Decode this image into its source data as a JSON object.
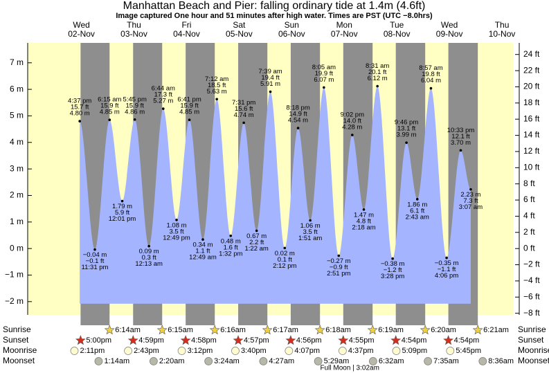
{
  "chart_data": {
    "type": "tide",
    "title": "Manhattan Beach and Pier: falling  ordinary tide at 1.4m (4.6ft)",
    "subtitle": "Image captured One hour and 51 minutes after high water. Times are PST (UTC −8.0hrs)",
    "ylim": [
      -2.5,
      7.75
    ],
    "yticks": [
      {
        "value": -2,
        "label": "−2 m"
      },
      {
        "value": -1,
        "label": "−1 m"
      },
      {
        "value": 0,
        "label": "0 m"
      },
      {
        "value": 1,
        "label": "1 m"
      },
      {
        "value": 2,
        "label": "2 m"
      },
      {
        "value": 3,
        "label": "3 m"
      },
      {
        "value": 4,
        "label": "4 m"
      },
      {
        "value": 5,
        "label": "5 m"
      },
      {
        "value": 6,
        "label": "6 m"
      },
      {
        "value": 7,
        "label": "7 m"
      }
    ],
    "y2lim": [
      -8.2,
      25.43
    ],
    "y2ticks": [
      {
        "value": -8,
        "label": "−8 ft"
      },
      {
        "value": -6,
        "label": "−6 ft"
      },
      {
        "value": -4,
        "label": "−4 ft"
      },
      {
        "value": -2,
        "label": "−2 ft"
      },
      {
        "value": 0,
        "label": "0 ft"
      },
      {
        "value": 2,
        "label": "2 ft"
      },
      {
        "value": 4,
        "label": "4 ft"
      },
      {
        "value": 6,
        "label": "6 ft"
      },
      {
        "value": 8,
        "label": "8 ft"
      },
      {
        "value": 10,
        "label": "10 ft"
      },
      {
        "value": 12,
        "label": "12 ft"
      },
      {
        "value": 14,
        "label": "14 ft"
      },
      {
        "value": 16,
        "label": "16 ft"
      },
      {
        "value": 18,
        "label": "18 ft"
      },
      {
        "value": 20,
        "label": "20 ft"
      },
      {
        "value": 22,
        "label": "22 ft"
      },
      {
        "value": 24,
        "label": "24 ft"
      }
    ],
    "colors": {
      "day": "#ffffc4",
      "night": "#8e8e8e",
      "water": "#a4b4ff",
      "date": "#dd0000"
    },
    "row_labels": {
      "sunrise": "Sunrise",
      "sunset": "Sunset",
      "moonrise": "Moonrise",
      "moonset": "Moonset"
    },
    "days": [
      {
        "weekday": "Wed",
        "date": "02-Nov",
        "sunset": "5:00pm",
        "moonrise": "2:11pm",
        "tides": [
          {
            "time": "4:37 pm",
            "value": 4.8,
            "value_label": "4.80 m",
            "ft": "15.7 ft"
          },
          {
            "time": "11:31 pm",
            "value": -0.04,
            "value_label": "−0.04 m",
            "ft": "−0.1 ft"
          }
        ]
      },
      {
        "weekday": "Thu",
        "date": "03-Nov",
        "sunrise": "6:14am",
        "sunset": "4:59pm",
        "moonrise": "2:43pm",
        "moonset": "1:14am",
        "tides": [
          {
            "time": "6:15 am",
            "value": 4.85,
            "value_label": "4.85 m",
            "ft": "15.9 ft"
          },
          {
            "time": "12:01 pm",
            "value": 1.79,
            "value_label": "1.79 m",
            "ft": "5.9 ft"
          },
          {
            "time": "5:45 pm",
            "value": 4.86,
            "value_label": "4.86 m",
            "ft": "15.9 ft"
          }
        ]
      },
      {
        "weekday": "Fri",
        "date": "04-Nov",
        "sunrise": "6:15am",
        "sunset": "4:58pm",
        "moonrise": "3:12pm",
        "moonset": "2:20am",
        "tides": [
          {
            "time": "12:13 am",
            "value": 0.09,
            "value_label": "0.09 m",
            "ft": "0.3 ft"
          },
          {
            "time": "6:44 am",
            "value": 5.27,
            "value_label": "5.27 m",
            "ft": "17.3 ft"
          },
          {
            "time": "12:49 pm",
            "value": 1.08,
            "value_label": "1.08 m",
            "ft": "3.5 ft"
          },
          {
            "time": "6:41 pm",
            "value": 4.85,
            "value_label": "4.85 m",
            "ft": "15.9 ft"
          }
        ]
      },
      {
        "weekday": "Sat",
        "date": "05-Nov",
        "sunrise": "6:16am",
        "sunset": "4:57pm",
        "moonrise": "3:40pm",
        "moonset": "3:24am",
        "tides": [
          {
            "time": "12:49 am",
            "value": 0.34,
            "value_label": "0.34 m",
            "ft": "1.1 ft"
          },
          {
            "time": "7:12 am",
            "value": 5.63,
            "value_label": "5.63 m",
            "ft": "18.5 ft"
          },
          {
            "time": "1:32 pm",
            "value": 0.48,
            "value_label": "0.48 m",
            "ft": "1.6 ft"
          },
          {
            "time": "7:31 pm",
            "value": 4.74,
            "value_label": "4.74 m",
            "ft": "15.6 ft"
          }
        ]
      },
      {
        "weekday": "Sun",
        "date": "06-Nov",
        "sunrise": "6:17am",
        "sunset": "4:56pm",
        "moonrise": "4:07pm",
        "moonset": "4:27am",
        "tides": [
          {
            "time": "1:22 am",
            "value": 0.67,
            "value_label": "0.67 m",
            "ft": "2.2 ft"
          },
          {
            "time": "7:39 am",
            "value": 5.91,
            "value_label": "5.91 m",
            "ft": "19.4 ft"
          },
          {
            "time": "2:12 pm",
            "value": 0.02,
            "value_label": "0.02 m",
            "ft": "0.1 ft"
          },
          {
            "time": "8:18 pm",
            "value": 4.54,
            "value_label": "4.54 m",
            "ft": "14.9 ft"
          }
        ]
      },
      {
        "weekday": "Mon",
        "date": "07-Nov",
        "sunrise": "6:18am",
        "sunset": "4:55pm",
        "moonrise": "4:37pm",
        "moonset": "5:29am",
        "tides": [
          {
            "time": "1:51 am",
            "value": 1.06,
            "value_label": "1.06 m",
            "ft": "3.5 ft"
          },
          {
            "time": "8:05 am",
            "value": 6.07,
            "value_label": "6.07 m",
            "ft": "19.9 ft"
          },
          {
            "time": "2:51 pm",
            "value": -0.27,
            "value_label": "−0.27 m",
            "ft": "−0.9 ft"
          },
          {
            "time": "9:02 pm",
            "value": 4.28,
            "value_label": "4.28 m",
            "ft": "14.0 ft"
          }
        ]
      },
      {
        "weekday": "Tue",
        "date": "08-Nov",
        "sunrise": "6:19am",
        "sunset": "4:54pm",
        "moonrise": "5:09pm",
        "moonset": "6:32am",
        "full_moon": "Full Moon | 3:02am",
        "tides": [
          {
            "time": "2:18 am",
            "value": 1.47,
            "value_label": "1.47 m",
            "ft": "4.8 ft"
          },
          {
            "time": "8:31 am",
            "value": 6.12,
            "value_label": "6.12 m",
            "ft": "20.1 ft"
          },
          {
            "time": "3:28 pm",
            "value": -0.38,
            "value_label": "−0.38 m",
            "ft": "−1.2 ft"
          },
          {
            "time": "9:46 pm",
            "value": 3.99,
            "value_label": "3.99 m",
            "ft": "13.1 ft"
          }
        ]
      },
      {
        "weekday": "Wed",
        "date": "09-Nov",
        "sunrise": "6:20am",
        "sunset": "4:54pm",
        "moonrise": "5:45pm",
        "moonset": "7:35am",
        "tides": [
          {
            "time": "2:43 am",
            "value": 1.86,
            "value_label": "1.86 m",
            "ft": "6.1 ft"
          },
          {
            "time": "8:57 am",
            "value": 6.04,
            "value_label": "6.04 m",
            "ft": "19.8 ft"
          },
          {
            "time": "4:06 pm",
            "value": -0.35,
            "value_label": "−0.35 m",
            "ft": "−1.1 ft"
          },
          {
            "time": "10:33 pm",
            "value": 3.7,
            "value_label": "3.70 m",
            "ft": "12.1 ft"
          }
        ]
      },
      {
        "weekday": "Thu",
        "date": "10-Nov",
        "sunrise": "6:21am",
        "moonset": "8:36am",
        "tides": [
          {
            "time": "3:07 am",
            "value": 2.23,
            "value_label": "2.23 m",
            "ft": "7.3 ft"
          }
        ]
      }
    ]
  }
}
